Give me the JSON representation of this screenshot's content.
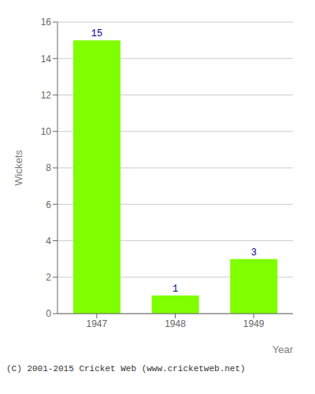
{
  "chart_data": {
    "type": "bar",
    "categories": [
      "1947",
      "1948",
      "1949"
    ],
    "values": [
      15,
      1,
      3
    ],
    "color": "#7fff00",
    "xlabel": "Year",
    "ylabel": "Wickets",
    "ylim": [
      0,
      16
    ],
    "yticks": [
      0,
      2,
      4,
      6,
      8,
      10,
      12,
      14,
      16
    ],
    "grid": true,
    "data_labels": true,
    "annotations": [
      "(C) 2001-2015 Cricket Web (www.cricketweb.net)"
    ]
  }
}
